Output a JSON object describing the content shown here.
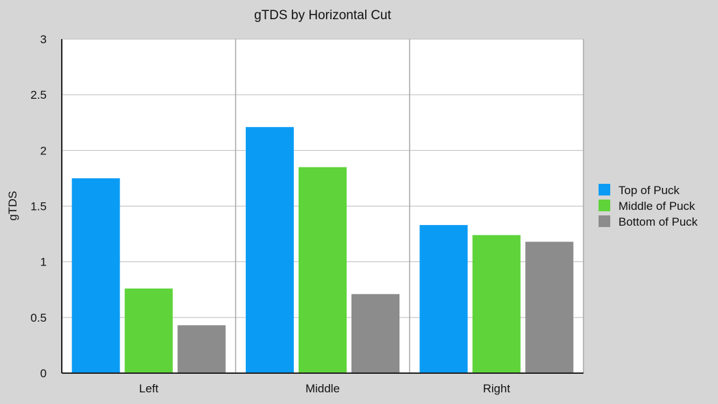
{
  "chart_data": {
    "type": "bar",
    "title": "gTDS by Horizontal Cut",
    "xlabel": "",
    "ylabel": "gTDS",
    "categories": [
      "Left",
      "Middle",
      "Right"
    ],
    "series": [
      {
        "name": "Top of Puck",
        "values": [
          1.75,
          2.21,
          1.33
        ],
        "color": "#0a9cf5"
      },
      {
        "name": "Middle of Puck",
        "values": [
          0.76,
          1.85,
          1.24
        ],
        "color": "#5fd33a"
      },
      {
        "name": "Bottom of Puck",
        "values": [
          0.43,
          0.71,
          1.18
        ],
        "color": "#8c8c8c"
      }
    ],
    "ylim": [
      0,
      3
    ],
    "yticks": [
      "0",
      "0.5",
      "1",
      "1.5",
      "2",
      "2.5",
      "3"
    ],
    "grid": true,
    "legend_position": "right"
  }
}
